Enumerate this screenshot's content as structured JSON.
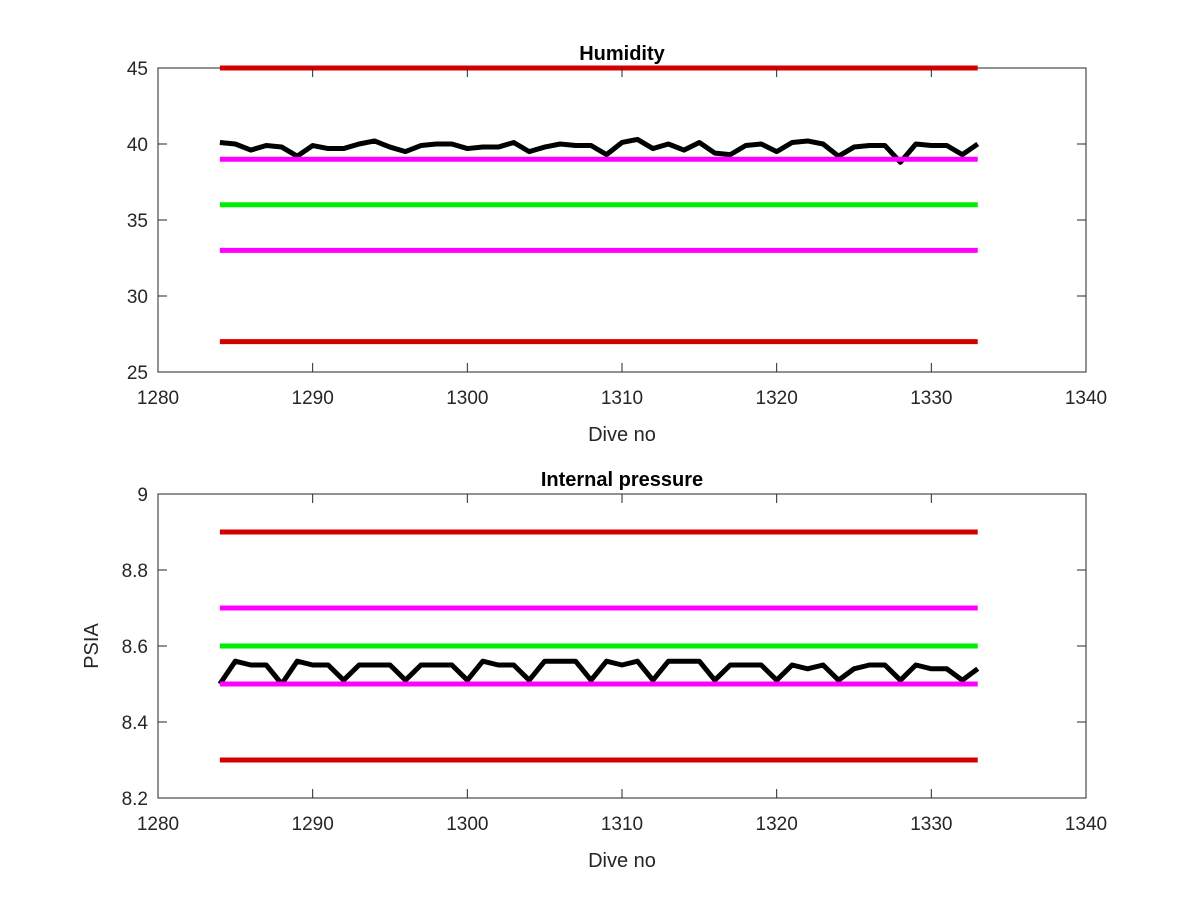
{
  "chart_data": [
    {
      "type": "line",
      "title": "Humidity",
      "xlabel": "Dive no",
      "ylabel": "",
      "xlim": [
        1280,
        1340
      ],
      "ylim": [
        25,
        45
      ],
      "xticks": [
        1280,
        1290,
        1300,
        1310,
        1320,
        1330,
        1340
      ],
      "yticks": [
        25,
        30,
        35,
        40,
        45
      ],
      "grid": false,
      "series": [
        {
          "color": "#000000",
          "x": [
            1284,
            1285,
            1286,
            1287,
            1288,
            1289,
            1290,
            1291,
            1292,
            1293,
            1294,
            1295,
            1296,
            1297,
            1298,
            1299,
            1300,
            1301,
            1302,
            1303,
            1304,
            1305,
            1306,
            1307,
            1308,
            1309,
            1310,
            1311,
            1312,
            1313,
            1314,
            1315,
            1316,
            1317,
            1318,
            1319,
            1320,
            1321,
            1322,
            1323,
            1324,
            1325,
            1326,
            1327,
            1328,
            1329,
            1330,
            1331,
            1332,
            1333
          ],
          "values": [
            40.1,
            40.0,
            39.6,
            39.9,
            39.8,
            39.2,
            39.9,
            39.7,
            39.7,
            40.0,
            40.2,
            39.8,
            39.5,
            39.9,
            40.0,
            40.0,
            39.7,
            39.8,
            39.8,
            40.1,
            39.5,
            39.8,
            40.0,
            39.9,
            39.9,
            39.3,
            40.1,
            40.3,
            39.7,
            40.0,
            39.6,
            40.1,
            39.4,
            39.3,
            39.9,
            40.0,
            39.5,
            40.1,
            40.2,
            40.0,
            39.2,
            39.8,
            39.9,
            39.9,
            38.8,
            40.0,
            39.9,
            39.9,
            39.3,
            40.0
          ]
        },
        {
          "color": "#d40000",
          "x": [
            1284,
            1333
          ],
          "values": [
            45,
            45
          ]
        },
        {
          "color": "#ff00ff",
          "x": [
            1284,
            1333
          ],
          "values": [
            39,
            39
          ]
        },
        {
          "color": "#00ee00",
          "x": [
            1284,
            1333
          ],
          "values": [
            36,
            36
          ]
        },
        {
          "color": "#ff00ff",
          "x": [
            1284,
            1333
          ],
          "values": [
            33,
            33
          ]
        },
        {
          "color": "#d40000",
          "x": [
            1284,
            1333
          ],
          "values": [
            27,
            27
          ]
        }
      ]
    },
    {
      "type": "line",
      "title": "Internal pressure",
      "xlabel": "Dive no",
      "ylabel": "PSIA",
      "xlim": [
        1280,
        1340
      ],
      "ylim": [
        8.2,
        9
      ],
      "xticks": [
        1280,
        1290,
        1300,
        1310,
        1320,
        1330,
        1340
      ],
      "yticks": [
        8.2,
        8.4,
        8.6,
        8.8,
        9
      ],
      "grid": false,
      "series": [
        {
          "color": "#000000",
          "x": [
            1284,
            1285,
            1286,
            1287,
            1288,
            1289,
            1290,
            1291,
            1292,
            1293,
            1294,
            1295,
            1296,
            1297,
            1298,
            1299,
            1300,
            1301,
            1302,
            1303,
            1304,
            1305,
            1306,
            1307,
            1308,
            1309,
            1310,
            1311,
            1312,
            1313,
            1314,
            1315,
            1316,
            1317,
            1318,
            1319,
            1320,
            1321,
            1322,
            1323,
            1324,
            1325,
            1326,
            1327,
            1328,
            1329,
            1330,
            1331,
            1332,
            1333
          ],
          "values": [
            8.5,
            8.56,
            8.55,
            8.55,
            8.5,
            8.56,
            8.55,
            8.55,
            8.51,
            8.55,
            8.55,
            8.55,
            8.51,
            8.55,
            8.55,
            8.55,
            8.51,
            8.56,
            8.55,
            8.55,
            8.51,
            8.56,
            8.56,
            8.56,
            8.51,
            8.56,
            8.55,
            8.56,
            8.51,
            8.56,
            8.56,
            8.56,
            8.51,
            8.55,
            8.55,
            8.55,
            8.51,
            8.55,
            8.54,
            8.55,
            8.51,
            8.54,
            8.55,
            8.55,
            8.51,
            8.55,
            8.54,
            8.54,
            8.51,
            8.54
          ]
        },
        {
          "color": "#d40000",
          "x": [
            1284,
            1333
          ],
          "values": [
            8.9,
            8.9
          ]
        },
        {
          "color": "#ff00ff",
          "x": [
            1284,
            1333
          ],
          "values": [
            8.7,
            8.7
          ]
        },
        {
          "color": "#00ee00",
          "x": [
            1284,
            1333
          ],
          "values": [
            8.6,
            8.6
          ]
        },
        {
          "color": "#ff00ff",
          "x": [
            1284,
            1333
          ],
          "values": [
            8.5,
            8.5
          ]
        },
        {
          "color": "#d40000",
          "x": [
            1284,
            1333
          ],
          "values": [
            8.3,
            8.3
          ]
        }
      ]
    }
  ]
}
